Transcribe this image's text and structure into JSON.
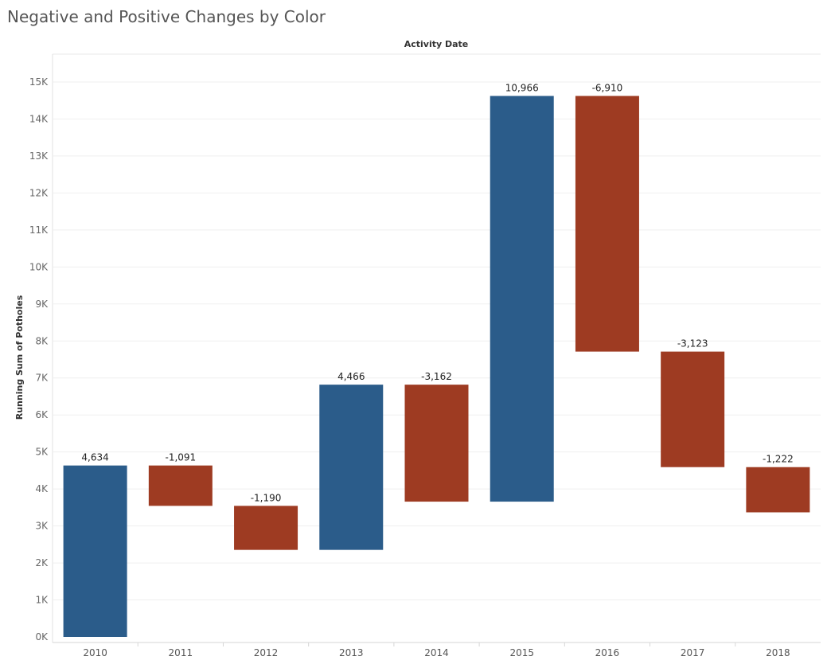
{
  "chart_data": {
    "type": "bar",
    "subtype": "waterfall",
    "title": "Negative and Positive Changes by Color",
    "header_label": "Activity Date",
    "ylabel": "Running Sum of Potholes",
    "ylim": [
      0,
      15000
    ],
    "y_ticks": [
      "0K",
      "1K",
      "2K",
      "3K",
      "4K",
      "5K",
      "6K",
      "7K",
      "8K",
      "9K",
      "10K",
      "11K",
      "12K",
      "13K",
      "14K",
      "15K"
    ],
    "categories": [
      "2010",
      "2011",
      "2012",
      "2013",
      "2014",
      "2015",
      "2016",
      "2017",
      "2018"
    ],
    "changes": [
      4634,
      -1091,
      -1190,
      4466,
      -3162,
      10966,
      -6910,
      -3123,
      -1222
    ],
    "change_labels": [
      "4,634",
      "-1,091",
      "-1,190",
      "4,466",
      "-3,162",
      "10,966",
      "-6,910",
      "-3,123",
      "-1,222"
    ],
    "colors": {
      "positive": "#2b5c8a",
      "negative": "#9e3b22"
    },
    "grid": true,
    "legend": "none"
  }
}
